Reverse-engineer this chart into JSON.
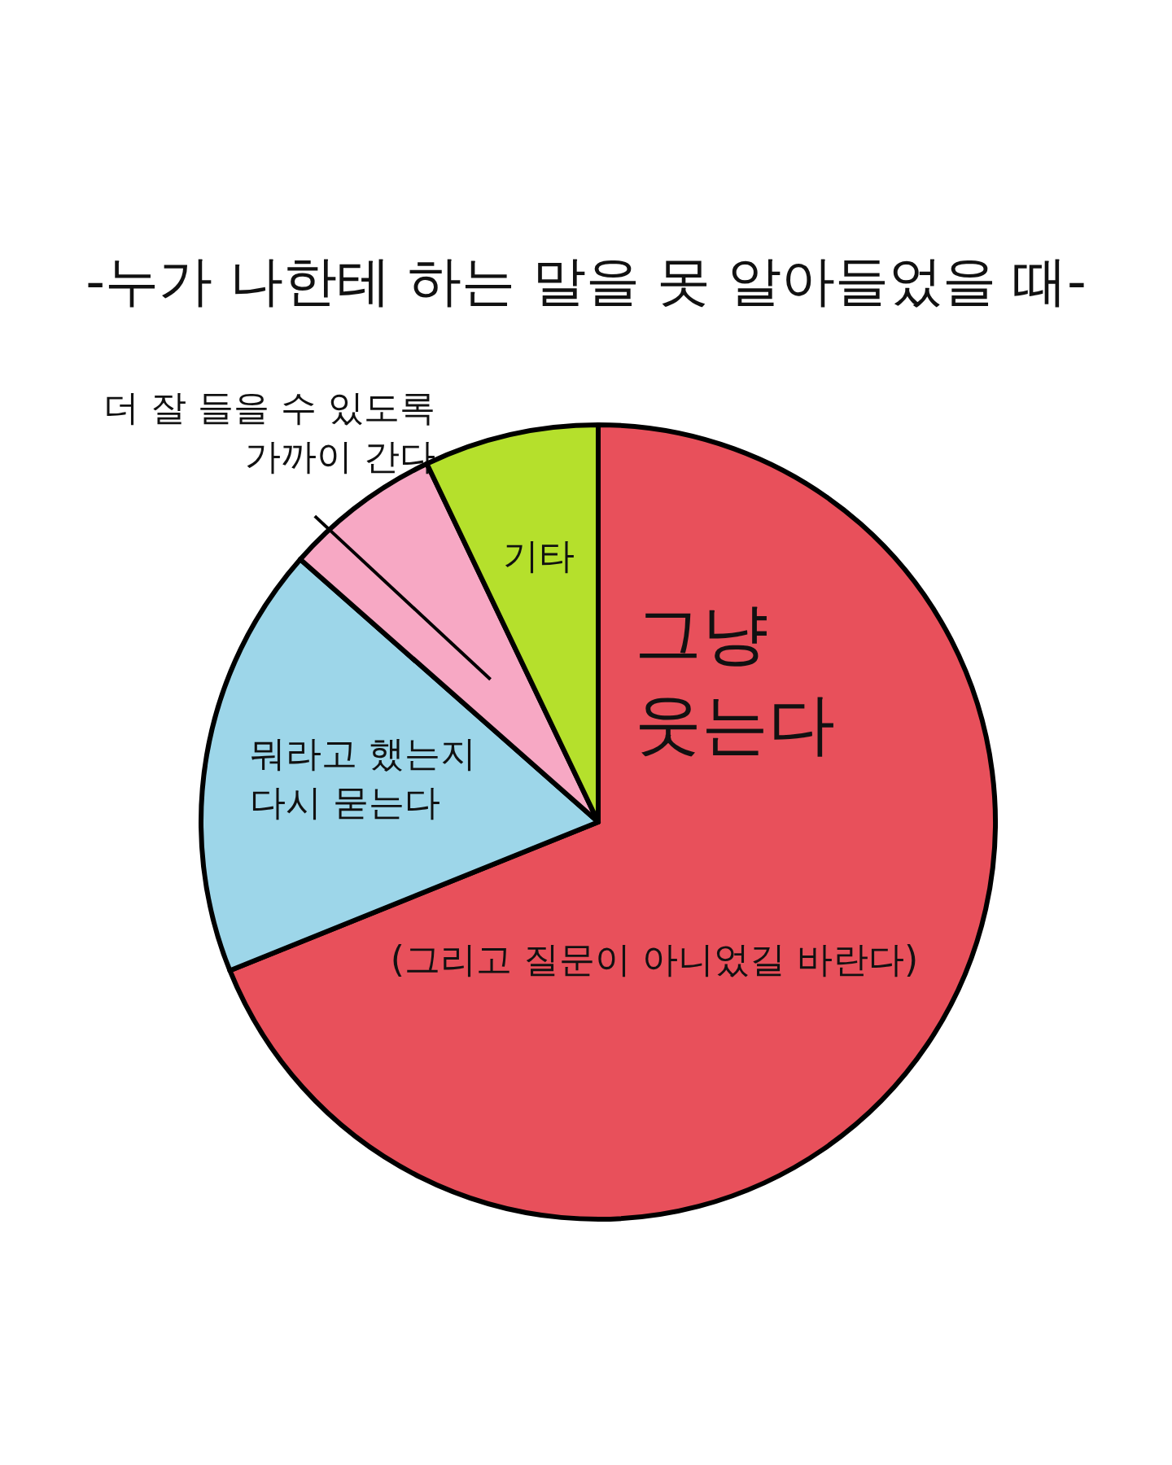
{
  "chart_data": {
    "type": "pie",
    "title": "-누가 나한테 하는 말을 못 알아들었을 때-",
    "categories": [
      "그냥\n웃는다",
      "뭐라고 했는지\n다시 묻는다",
      "더 잘 들을 수 있도록\n가까이 간다",
      "기타"
    ],
    "values": [
      68.9,
      17.6,
      6.4,
      7.1
    ],
    "colors": [
      "#e8505b",
      "#9dd6e9",
      "#f7a8c4",
      "#b5e02c"
    ],
    "annotations": [
      "(그리고 질문이 아니었길 바란다)"
    ]
  }
}
